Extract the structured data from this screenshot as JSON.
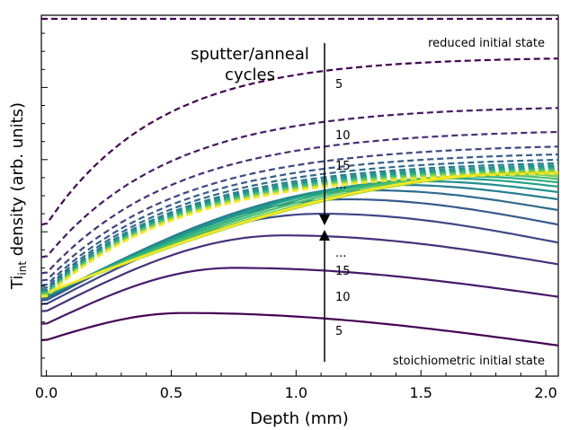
{
  "chart_data": {
    "type": "line",
    "xlabel": "Depth (mm)",
    "ylabel_main": "Ti",
    "ylabel_sub": "int",
    "ylabel_rest": " density (arb. units)",
    "xlim": [
      -0.02,
      2.05
    ],
    "ylim": [
      0,
      1.0
    ],
    "x_ticks": [
      0.0,
      0.5,
      1.0,
      1.5,
      2.0
    ],
    "x_tick_labels": [
      "0.0",
      "0.5",
      "1.0",
      "1.5",
      "2.0"
    ],
    "y_tick_labels_shown": false,
    "grid": false,
    "legend": "none",
    "colormap": "viridis",
    "annotations": {
      "arrow_title_line1": "sputter/anneal",
      "arrow_title_line2": "cycles",
      "reduced_label": "reduced initial state",
      "stoich_label": "stoichiometric initial state",
      "reduced_cycle_labels": [
        "5",
        "10",
        "15",
        "..."
      ],
      "stoich_cycle_labels": [
        "...",
        "15",
        "10",
        "5"
      ]
    },
    "series_groups": {
      "reduced_initial_state": {
        "style": "dashed",
        "constant_value": 0.99,
        "cycle_curves": {
          "x": [
            0,
            0.25,
            0.5,
            0.75,
            1.0,
            1.25,
            1.5,
            1.75,
            2.0
          ],
          "start_values": [
            0.42,
            0.33,
            0.285,
            0.265,
            0.252,
            0.244,
            0.238,
            0.235,
            0.232,
            0.23,
            0.228,
            0.226,
            0.224,
            0.222,
            0.22
          ],
          "plateau_values": [
            0.885,
            0.75,
            0.685,
            0.645,
            0.623,
            0.608,
            0.598,
            0.592,
            0.587,
            0.583,
            0.58,
            0.577,
            0.574,
            0.572,
            0.57
          ],
          "rate": [
            4.0,
            3.6,
            3.4,
            3.3,
            3.3,
            3.3,
            3.3,
            3.3,
            3.3,
            3.3,
            3.3,
            3.3,
            3.3,
            3.3,
            3.3
          ]
        }
      },
      "stoichiometric_initial_state": {
        "style": "solid",
        "cycle_curves": {
          "start_values": [
            0.1,
            0.145,
            0.18,
            0.2,
            0.21,
            0.215,
            0.22,
            0.222,
            0.224,
            0.226,
            0.228,
            0.229,
            0.23,
            0.231,
            0.232
          ],
          "peak_values": [
            0.175,
            0.3,
            0.39,
            0.45,
            0.49,
            0.515,
            0.53,
            0.54,
            0.548,
            0.553,
            0.557,
            0.56,
            0.563,
            0.565,
            0.567
          ],
          "peak_x": [
            0.55,
            0.75,
            0.95,
            1.1,
            1.2,
            1.3,
            1.4,
            1.5,
            1.6,
            1.7,
            1.8,
            1.9,
            2.0,
            2.0,
            2.0
          ],
          "end_values": [
            0.085,
            0.22,
            0.31,
            0.37,
            0.42,
            0.46,
            0.49,
            0.51,
            0.525,
            0.537,
            0.546,
            0.553,
            0.558,
            0.562,
            0.566
          ]
        }
      }
    }
  }
}
